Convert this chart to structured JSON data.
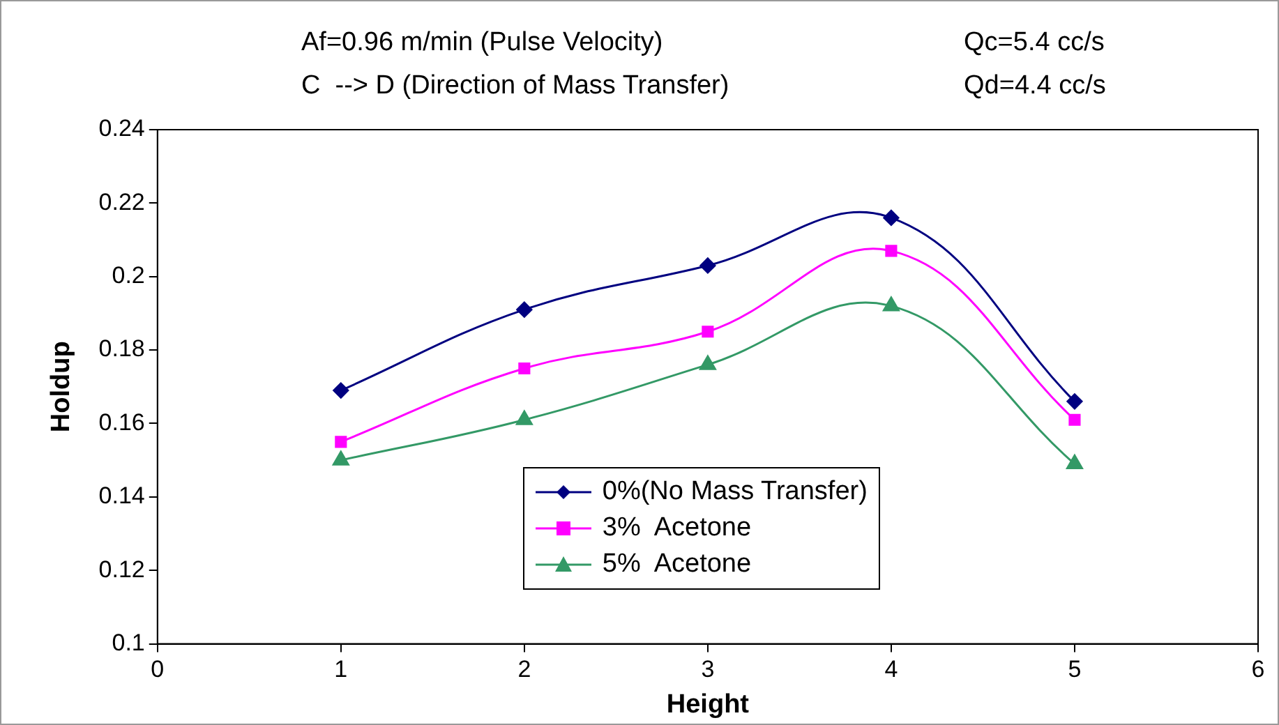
{
  "chart_data": {
    "type": "line",
    "xlabel": "Height",
    "ylabel": "Holdup",
    "annotations": [
      "Af=0.96 m/min (Pulse Velocity)",
      "Qc=5.4 cc/s",
      "C  --> D (Direction of Mass Transfer)",
      "Qd=4.4 cc/s"
    ],
    "x": [
      1,
      2,
      3,
      4,
      5
    ],
    "xlim": [
      0,
      6
    ],
    "xticks": [
      0,
      1,
      2,
      3,
      4,
      5,
      6
    ],
    "ylim": [
      0.1,
      0.24
    ],
    "yticks": [
      0.1,
      0.12,
      0.14,
      0.16,
      0.18,
      0.2,
      0.22,
      0.24
    ],
    "grid": false,
    "legend": "bottom",
    "series": [
      {
        "name": "0%(No Mass Transfer)",
        "color": "#000080",
        "marker": "diamond",
        "values": [
          0.169,
          0.191,
          0.203,
          0.216,
          0.166
        ]
      },
      {
        "name": "3%  Acetone",
        "color": "#ff00ff",
        "marker": "square",
        "values": [
          0.155,
          0.175,
          0.185,
          0.207,
          0.161
        ]
      },
      {
        "name": "5%  Acetone",
        "color": "#339966",
        "marker": "triangle",
        "values": [
          0.15,
          0.161,
          0.176,
          0.192,
          0.149
        ]
      }
    ]
  }
}
